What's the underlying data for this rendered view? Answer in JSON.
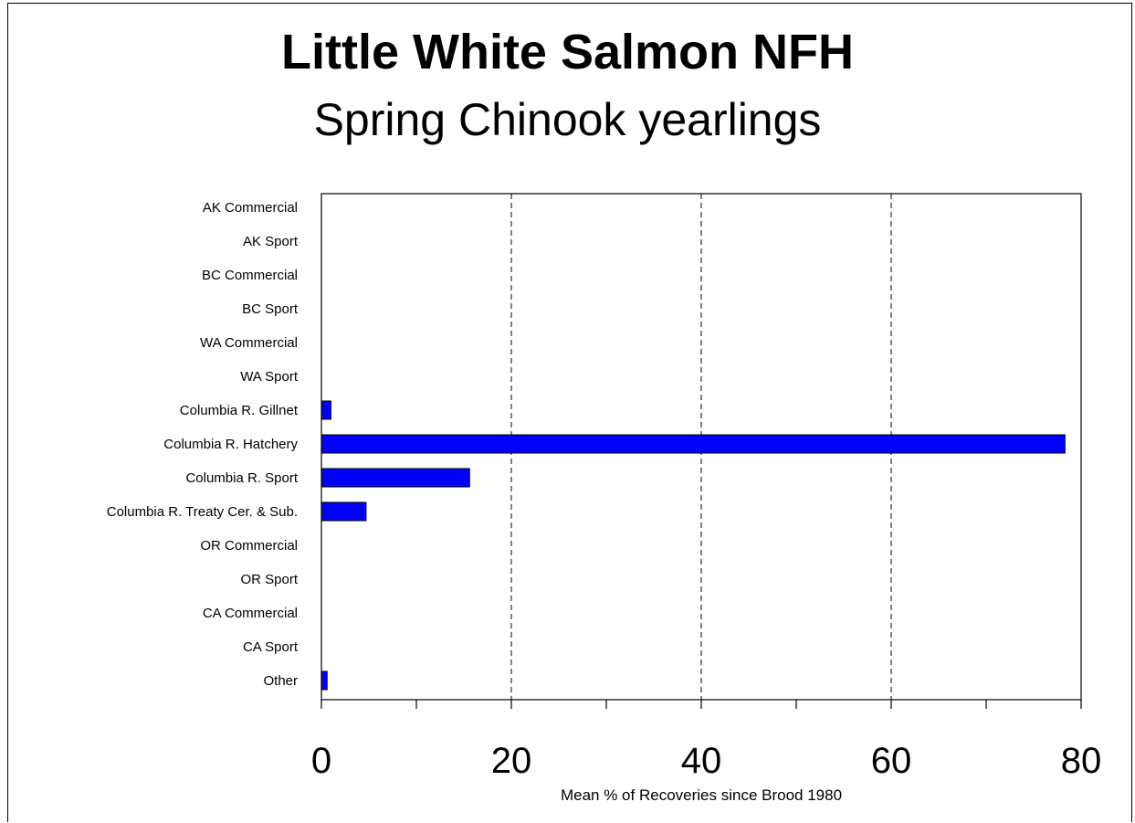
{
  "chart_data": {
    "type": "bar",
    "orientation": "horizontal",
    "title": "Little White Salmon NFH",
    "subtitle": "Spring Chinook yearlings",
    "xlabel": "Mean % of Recoveries since Brood 1980",
    "ylabel": "",
    "xlim": [
      0,
      80
    ],
    "x_ticks": [
      0,
      20,
      40,
      60,
      80
    ],
    "x_minor_ticks": [
      10,
      30,
      50,
      70
    ],
    "grid": "vertical dashed at major ticks",
    "legend": "none",
    "bar_color": "#0000ff",
    "categories": [
      "AK Commercial",
      "AK Sport",
      "BC Commercial",
      "BC Sport",
      "WA Commercial",
      "WA Sport",
      "Columbia R. Gillnet",
      "Columbia R. Hatchery",
      "Columbia R. Sport",
      "Columbia R. Treaty Cer. & Sub.",
      "OR Commercial",
      "OR Sport",
      "CA Commercial",
      "CA Sport",
      "Other"
    ],
    "values": [
      0,
      0,
      0,
      0,
      0,
      0,
      1.0,
      78.3,
      15.6,
      4.7,
      0,
      0,
      0,
      0,
      0.6
    ]
  }
}
